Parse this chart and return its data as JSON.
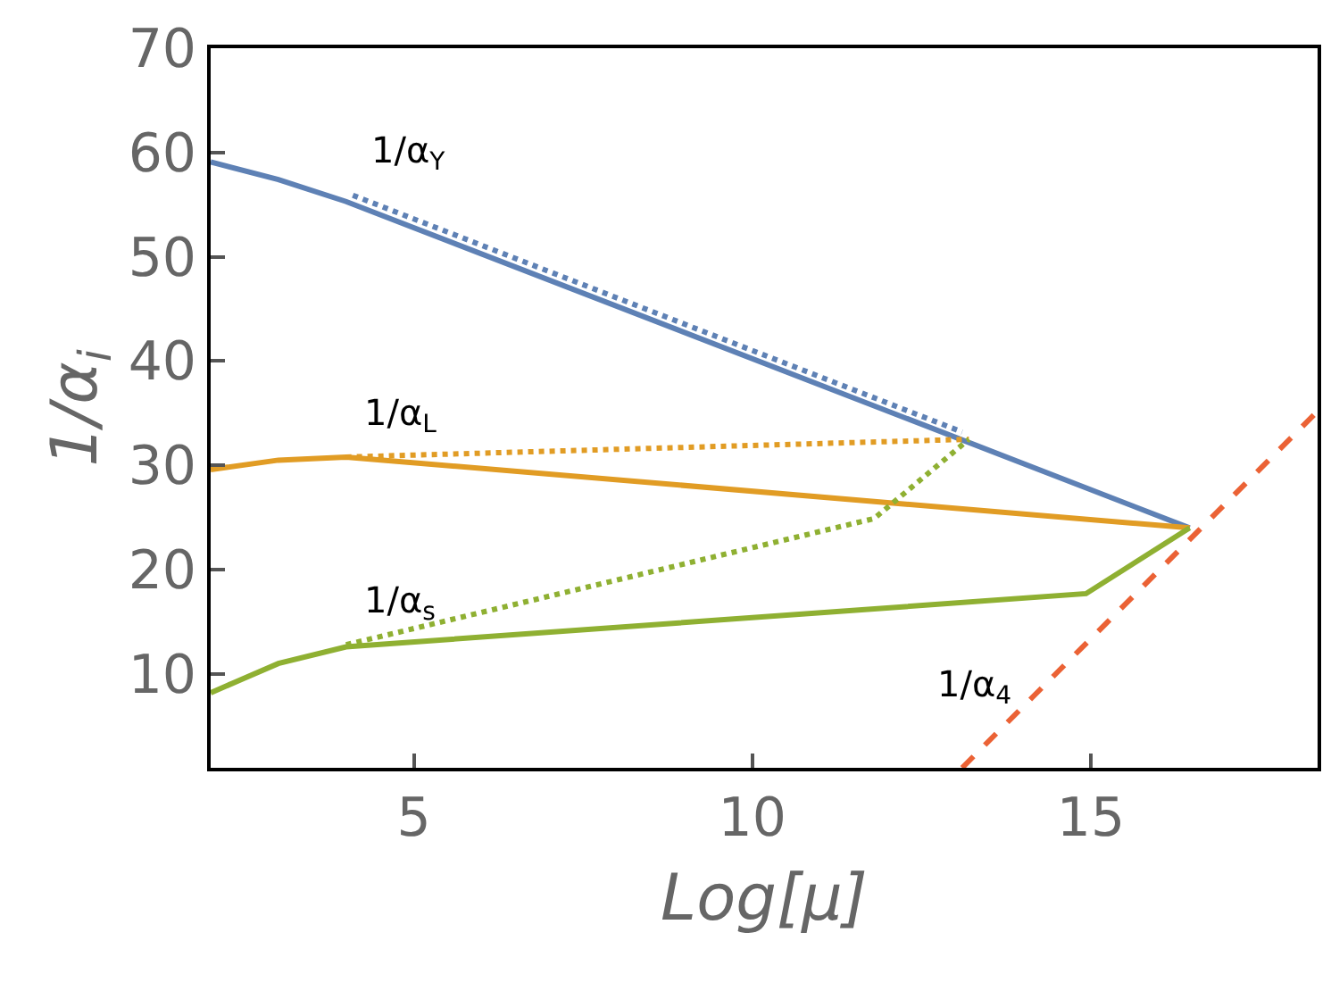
{
  "chart_data": {
    "type": "line",
    "xlabel": "Log[μ]",
    "ylabel": "1/α$_{i}$",
    "xlim": [
      2,
      18.35
    ],
    "ylim": [
      1,
      70
    ],
    "xticks": [
      5,
      10,
      15
    ],
    "yticks": [
      10,
      20,
      30,
      40,
      50,
      60,
      70
    ],
    "legend": false,
    "marker": "none",
    "series": [
      {
        "color": "#5e81b5",
        "line_style": "solid",
        "x": [
          2,
          3,
          4,
          16.46
        ],
        "values": [
          59.1,
          57.4,
          55.3,
          24.0
        ]
      },
      {
        "name": "1/α$_{Y}$",
        "color": "#5e81b5",
        "line_style": "dotted",
        "x": [
          4.1,
          13.1
        ],
        "values": [
          55.9,
          33.2
        ]
      },
      {
        "color": "#e19c24",
        "line_style": "solid",
        "x": [
          2,
          3,
          4,
          16.46
        ],
        "values": [
          29.6,
          30.5,
          30.8,
          24.0
        ]
      },
      {
        "name": "1/α$_{L}$",
        "color": "#e19c24",
        "line_style": "dotted",
        "x": [
          4,
          13.2
        ],
        "values": [
          30.8,
          32.5
        ]
      },
      {
        "color": "#8fb032",
        "line_style": "solid",
        "x": [
          2,
          3,
          4,
          14.93,
          16.46
        ],
        "values": [
          8.2,
          11.0,
          12.6,
          17.7,
          24.0
        ]
      },
      {
        "name": "1/α$_{s}$",
        "color": "#8fb032",
        "line_style": "dotted",
        "x": [
          4,
          11.8,
          13.2
        ],
        "values": [
          12.8,
          24.9,
          32.5
        ]
      },
      {
        "name": "1/α$_{4}$",
        "color": "#eb6235",
        "line_style": "dashed",
        "x": [
          13.1,
          18.35
        ],
        "values": [
          1,
          35.2
        ]
      }
    ]
  }
}
